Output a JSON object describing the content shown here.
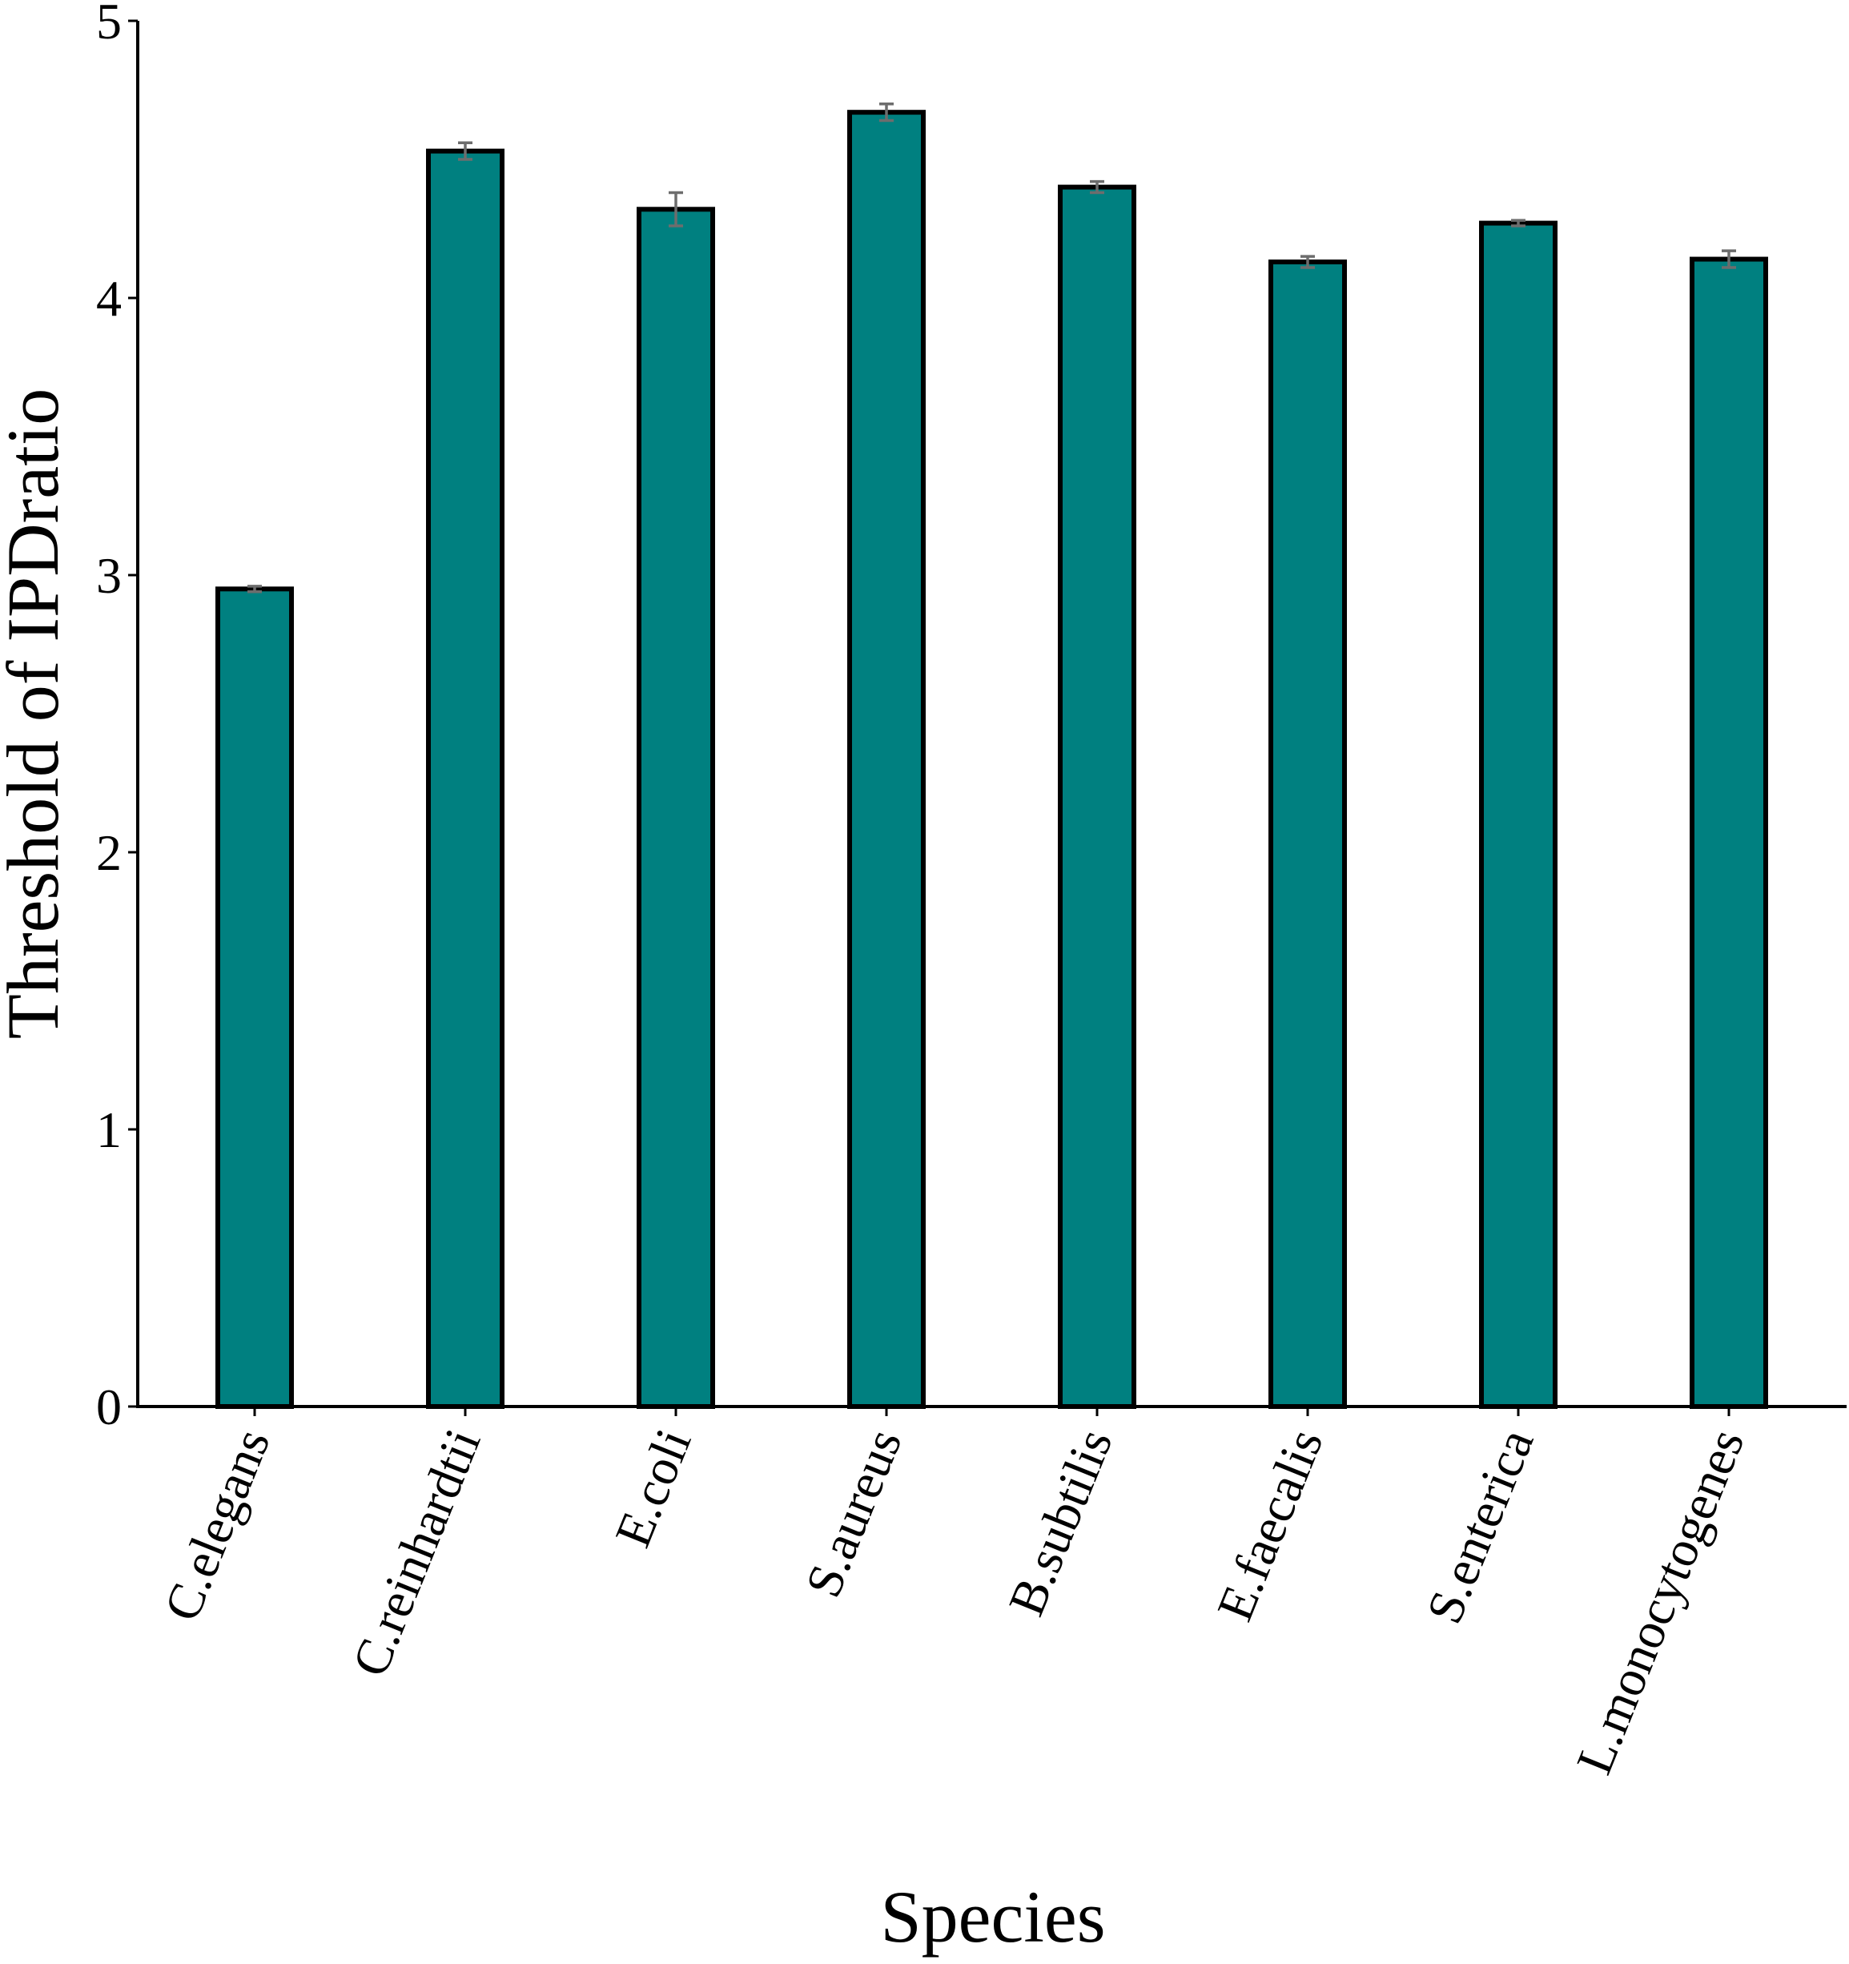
{
  "chart_data": {
    "type": "bar",
    "xlabel": "Species",
    "ylabel": "Threshold of IPDratio",
    "ylim": [
      0,
      5
    ],
    "yticks": [
      0,
      1,
      2,
      3,
      4,
      5
    ],
    "categories": [
      "C.elegans",
      "C.reinhardtii",
      "E.coli",
      "S.aureus",
      "B.subtilis",
      "E.faecalis",
      "S.enterica",
      "L.monocytogenes"
    ],
    "values": [
      2.95,
      4.53,
      4.32,
      4.67,
      4.4,
      4.13,
      4.27,
      4.14
    ],
    "errors": [
      0.01,
      0.03,
      0.06,
      0.03,
      0.02,
      0.02,
      0.01,
      0.03
    ],
    "grid": false,
    "bar_color": "#008080",
    "error_color": "#6d6d6d"
  }
}
